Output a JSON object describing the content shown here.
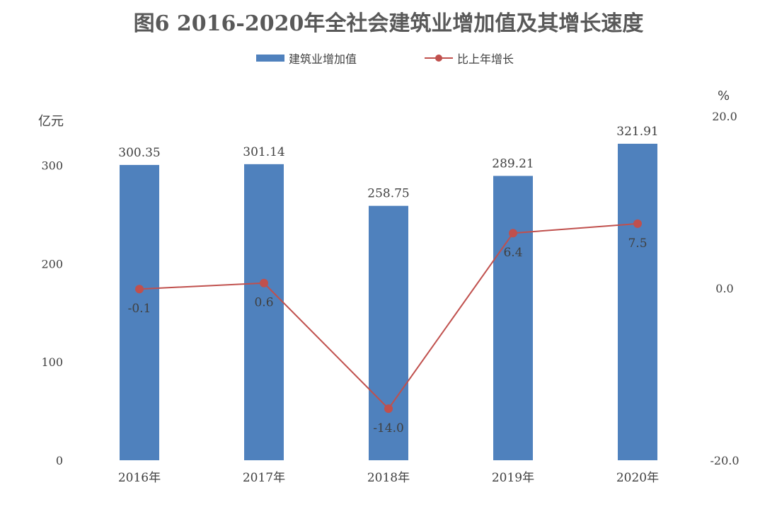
{
  "title": "图6  2016-2020年全社会建筑业增加值及其增长速度",
  "legend": {
    "bar_label": "建筑业增加值",
    "line_label": "比上年增长"
  },
  "units": {
    "left": "亿元",
    "right": "%"
  },
  "colors": {
    "bar": "#4f81bd",
    "line": "#c0504d"
  },
  "chart_data": {
    "type": "bar",
    "categories": [
      "2016年",
      "2017年",
      "2018年",
      "2019年",
      "2020年"
    ],
    "series": [
      {
        "name": "建筑业增加值",
        "type": "bar",
        "axis": "left",
        "values": [
          300.35,
          301.14,
          258.75,
          289.21,
          321.91
        ],
        "labels": [
          "300.35",
          "301.14",
          "258.75",
          "289.21",
          "321.91"
        ]
      },
      {
        "name": "比上年增长",
        "type": "line",
        "axis": "right",
        "values": [
          -0.1,
          0.6,
          -14.0,
          6.4,
          7.5
        ],
        "labels": [
          "-0.1",
          "0.6",
          "-14.0",
          "6.4",
          "7.5"
        ]
      }
    ],
    "left_axis": {
      "ticks": [
        "0",
        "100",
        "200",
        "300"
      ],
      "tick_values": [
        0,
        100,
        200,
        300
      ],
      "ylim": [
        0,
        350
      ]
    },
    "right_axis": {
      "ticks": [
        "-20.0",
        "0.0",
        "20.0"
      ],
      "tick_values": [
        -20,
        0,
        20
      ],
      "ylim": [
        -20,
        20
      ]
    },
    "grid": false,
    "legend_position": "top"
  }
}
